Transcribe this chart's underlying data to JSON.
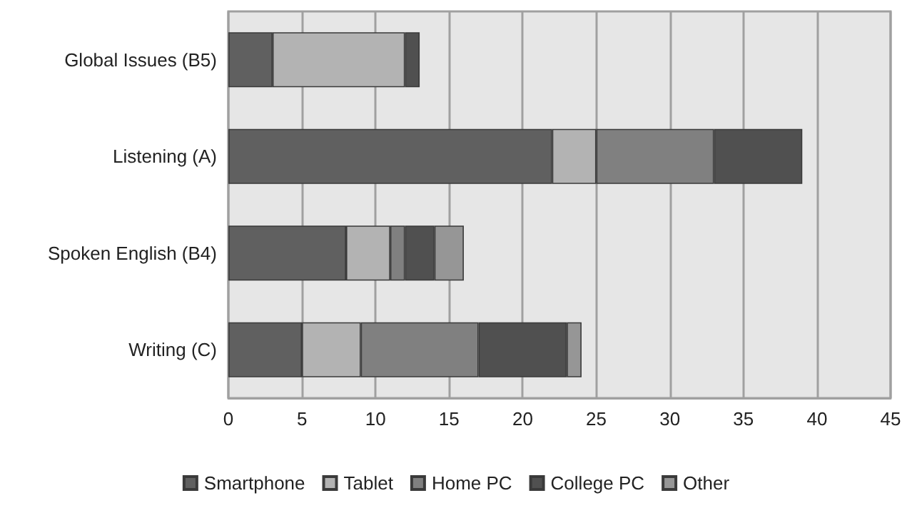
{
  "chart_data": {
    "type": "bar",
    "orientation": "horizontal",
    "stacked": true,
    "categories": [
      "Global Issues (B5)",
      "Listening (A)",
      "Spoken English (B4)",
      "Writing (C)"
    ],
    "series": [
      {
        "name": "Smartphone",
        "color": "#606060",
        "values": [
          3,
          22,
          8,
          5
        ]
      },
      {
        "name": "Tablet",
        "color": "#b3b3b3",
        "values": [
          9,
          3,
          3,
          4
        ]
      },
      {
        "name": "Home PC",
        "color": "#808080",
        "values": [
          0,
          8,
          1,
          8
        ]
      },
      {
        "name": "College PC",
        "color": "#505050",
        "values": [
          1,
          6,
          2,
          6
        ]
      },
      {
        "name": "Other",
        "color": "#969696",
        "values": [
          0,
          0,
          2,
          1
        ]
      }
    ],
    "xlim": [
      0,
      45
    ],
    "xticks": [
      0,
      5,
      10,
      15,
      20,
      25,
      30,
      35,
      40,
      45
    ],
    "grid": "x",
    "legend": "bottom"
  }
}
